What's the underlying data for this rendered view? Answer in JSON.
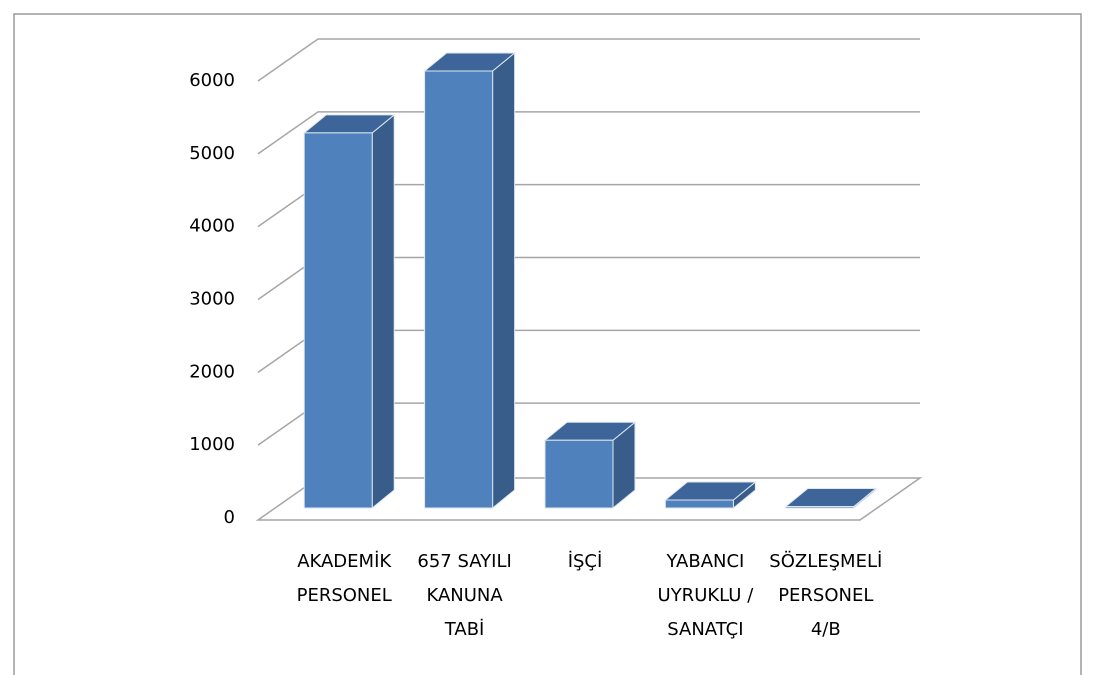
{
  "chart_data": {
    "type": "bar3d",
    "categories": [
      "AKADEMİK PERSONEL",
      "657 SAYILI KANUNA TABİ",
      "İŞÇİ",
      "YABANCI UYRUKLU / SANATÇI",
      "SÖZLEŞMELİ PERSONEL 4/B"
    ],
    "values": [
      5150,
      6000,
      930,
      110,
      20
    ],
    "color": "#4f81bd",
    "ylim": [
      0,
      6000
    ],
    "yticks": [
      0,
      1000,
      2000,
      3000,
      4000,
      5000,
      6000
    ],
    "grid": true
  }
}
